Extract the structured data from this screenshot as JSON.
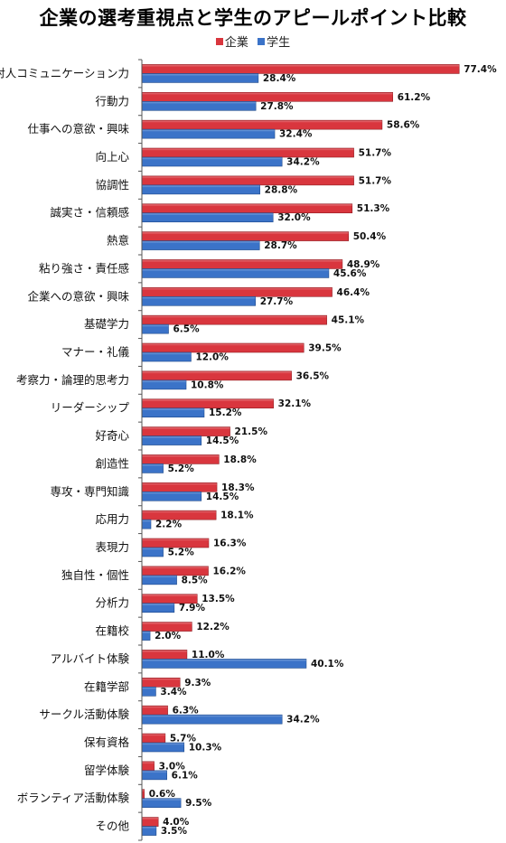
{
  "chart_data": {
    "type": "bar",
    "orientation": "horizontal",
    "title": "企業の選考重視点と学生のアピールポイント比較",
    "legend_position": "top",
    "xlim": [
      0,
      80
    ],
    "value_suffix": "%",
    "categories": [
      "対人コミュニケーション力",
      "行動力",
      "仕事への意欲・興味",
      "向上心",
      "協調性",
      "誠実さ・信頼感",
      "熱意",
      "粘り強さ・責任感",
      "企業への意欲・興味",
      "基礎学力",
      "マナー・礼儀",
      "考察力・論理的思考力",
      "リーダーシップ",
      "好奇心",
      "創造性",
      "専攻・専門知識",
      "応用力",
      "表現力",
      "独自性・個性",
      "分析力",
      "在籍校",
      "アルバイト体験",
      "在籍学部",
      "サークル活動体験",
      "保有資格",
      "留学体験",
      "ボランティア活動体験",
      "その他"
    ],
    "series": [
      {
        "name": "企業",
        "color": "#d9363e",
        "values": [
          77.4,
          61.2,
          58.6,
          51.7,
          51.7,
          51.3,
          50.4,
          48.9,
          46.4,
          45.1,
          39.5,
          36.5,
          32.1,
          21.5,
          18.8,
          18.3,
          18.1,
          16.3,
          16.2,
          13.5,
          12.2,
          11.0,
          9.3,
          6.3,
          5.7,
          3.0,
          0.6,
          4.0
        ]
      },
      {
        "name": "学生",
        "color": "#3b73c8",
        "values": [
          28.4,
          27.8,
          32.4,
          34.2,
          28.8,
          32.0,
          28.7,
          45.6,
          27.7,
          6.5,
          12.0,
          10.8,
          15.2,
          14.5,
          5.2,
          14.5,
          2.2,
          5.2,
          8.5,
          7.9,
          2.0,
          40.1,
          3.4,
          34.2,
          10.3,
          6.1,
          9.5,
          3.5
        ]
      }
    ]
  }
}
